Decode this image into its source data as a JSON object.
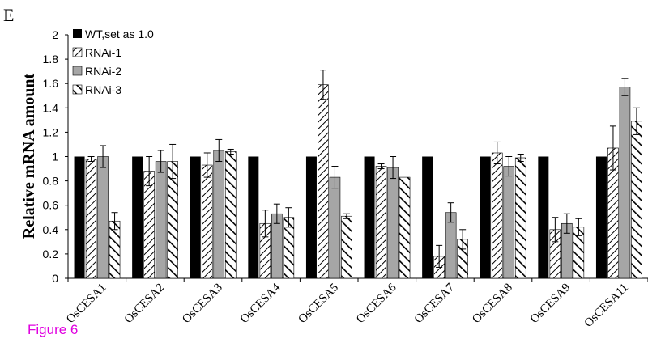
{
  "panel_label": "E",
  "figure_caption": "Figure 6",
  "chart_data": {
    "type": "bar",
    "title": "",
    "xlabel": "",
    "ylabel": "Relative mRNA amount",
    "ylim": [
      0,
      2
    ],
    "yticks": [
      0,
      0.2,
      0.4,
      0.6,
      0.8,
      1,
      1.2,
      1.4,
      1.6,
      1.8,
      2
    ],
    "grid": false,
    "legend_position": "top-left",
    "categories": [
      "OsCESA1",
      "OsCESA2",
      "OsCESA3",
      "OsCESA4",
      "OsCESA5",
      "OsCESA6",
      "OsCESA7",
      "OsCESA8",
      "OsCESA9",
      "OsCESA11"
    ],
    "series": [
      {
        "name": "WT,set as 1.0",
        "pattern": "solid-black",
        "values": [
          1,
          1,
          1,
          1,
          1,
          1,
          1,
          1,
          1,
          1
        ],
        "errors": [
          0,
          0,
          0,
          0,
          0,
          0,
          0,
          0,
          0,
          0
        ]
      },
      {
        "name": "RNAi-1",
        "pattern": "forward-hatch",
        "values": [
          0.98,
          0.88,
          0.93,
          0.45,
          1.59,
          0.92,
          0.18,
          1.03,
          0.4,
          1.07
        ],
        "errors": [
          0.02,
          0.12,
          0.1,
          0.11,
          0.12,
          0.02,
          0.09,
          0.09,
          0.1,
          0.18
        ]
      },
      {
        "name": "RNAi-2",
        "pattern": "solid-gray",
        "values": [
          1.0,
          0.96,
          1.05,
          0.53,
          0.83,
          0.91,
          0.54,
          0.92,
          0.45,
          1.57
        ],
        "errors": [
          0.09,
          0.09,
          0.09,
          0.08,
          0.09,
          0.09,
          0.08,
          0.08,
          0.08,
          0.07
        ]
      },
      {
        "name": "RNAi-3",
        "pattern": "back-hatch",
        "values": [
          0.47,
          0.96,
          1.04,
          0.5,
          0.51,
          0.83,
          0.32,
          0.99,
          0.42,
          1.29
        ],
        "errors": [
          0.07,
          0.14,
          0.02,
          0.08,
          0.02,
          0.0,
          0.08,
          0.03,
          0.07,
          0.11
        ]
      }
    ]
  }
}
